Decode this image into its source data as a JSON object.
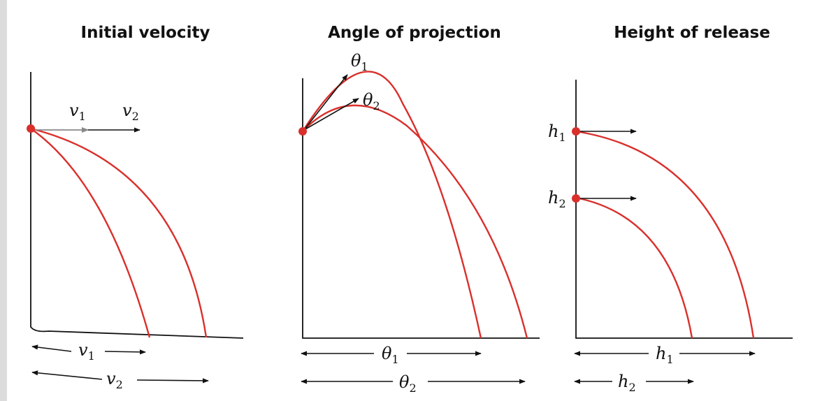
{
  "panels": [
    {
      "id": "initial-velocity",
      "title": "Initial velocity",
      "labels": {
        "a": "v",
        "a_sub": "1",
        "b": "v",
        "b_sub": "2"
      }
    },
    {
      "id": "angle-of-projection",
      "title": "Angle of projection",
      "labels": {
        "a": "θ",
        "a_sub": "1",
        "b": "θ",
        "b_sub": "2"
      }
    },
    {
      "id": "height-of-release",
      "title": "Height of release",
      "labels": {
        "a": "h",
        "a_sub": "1",
        "b": "h",
        "b_sub": "2"
      }
    }
  ],
  "colors": {
    "trajectory": "#d9302c",
    "axis": "#111111",
    "velocity_arrow_short": "#888888"
  }
}
